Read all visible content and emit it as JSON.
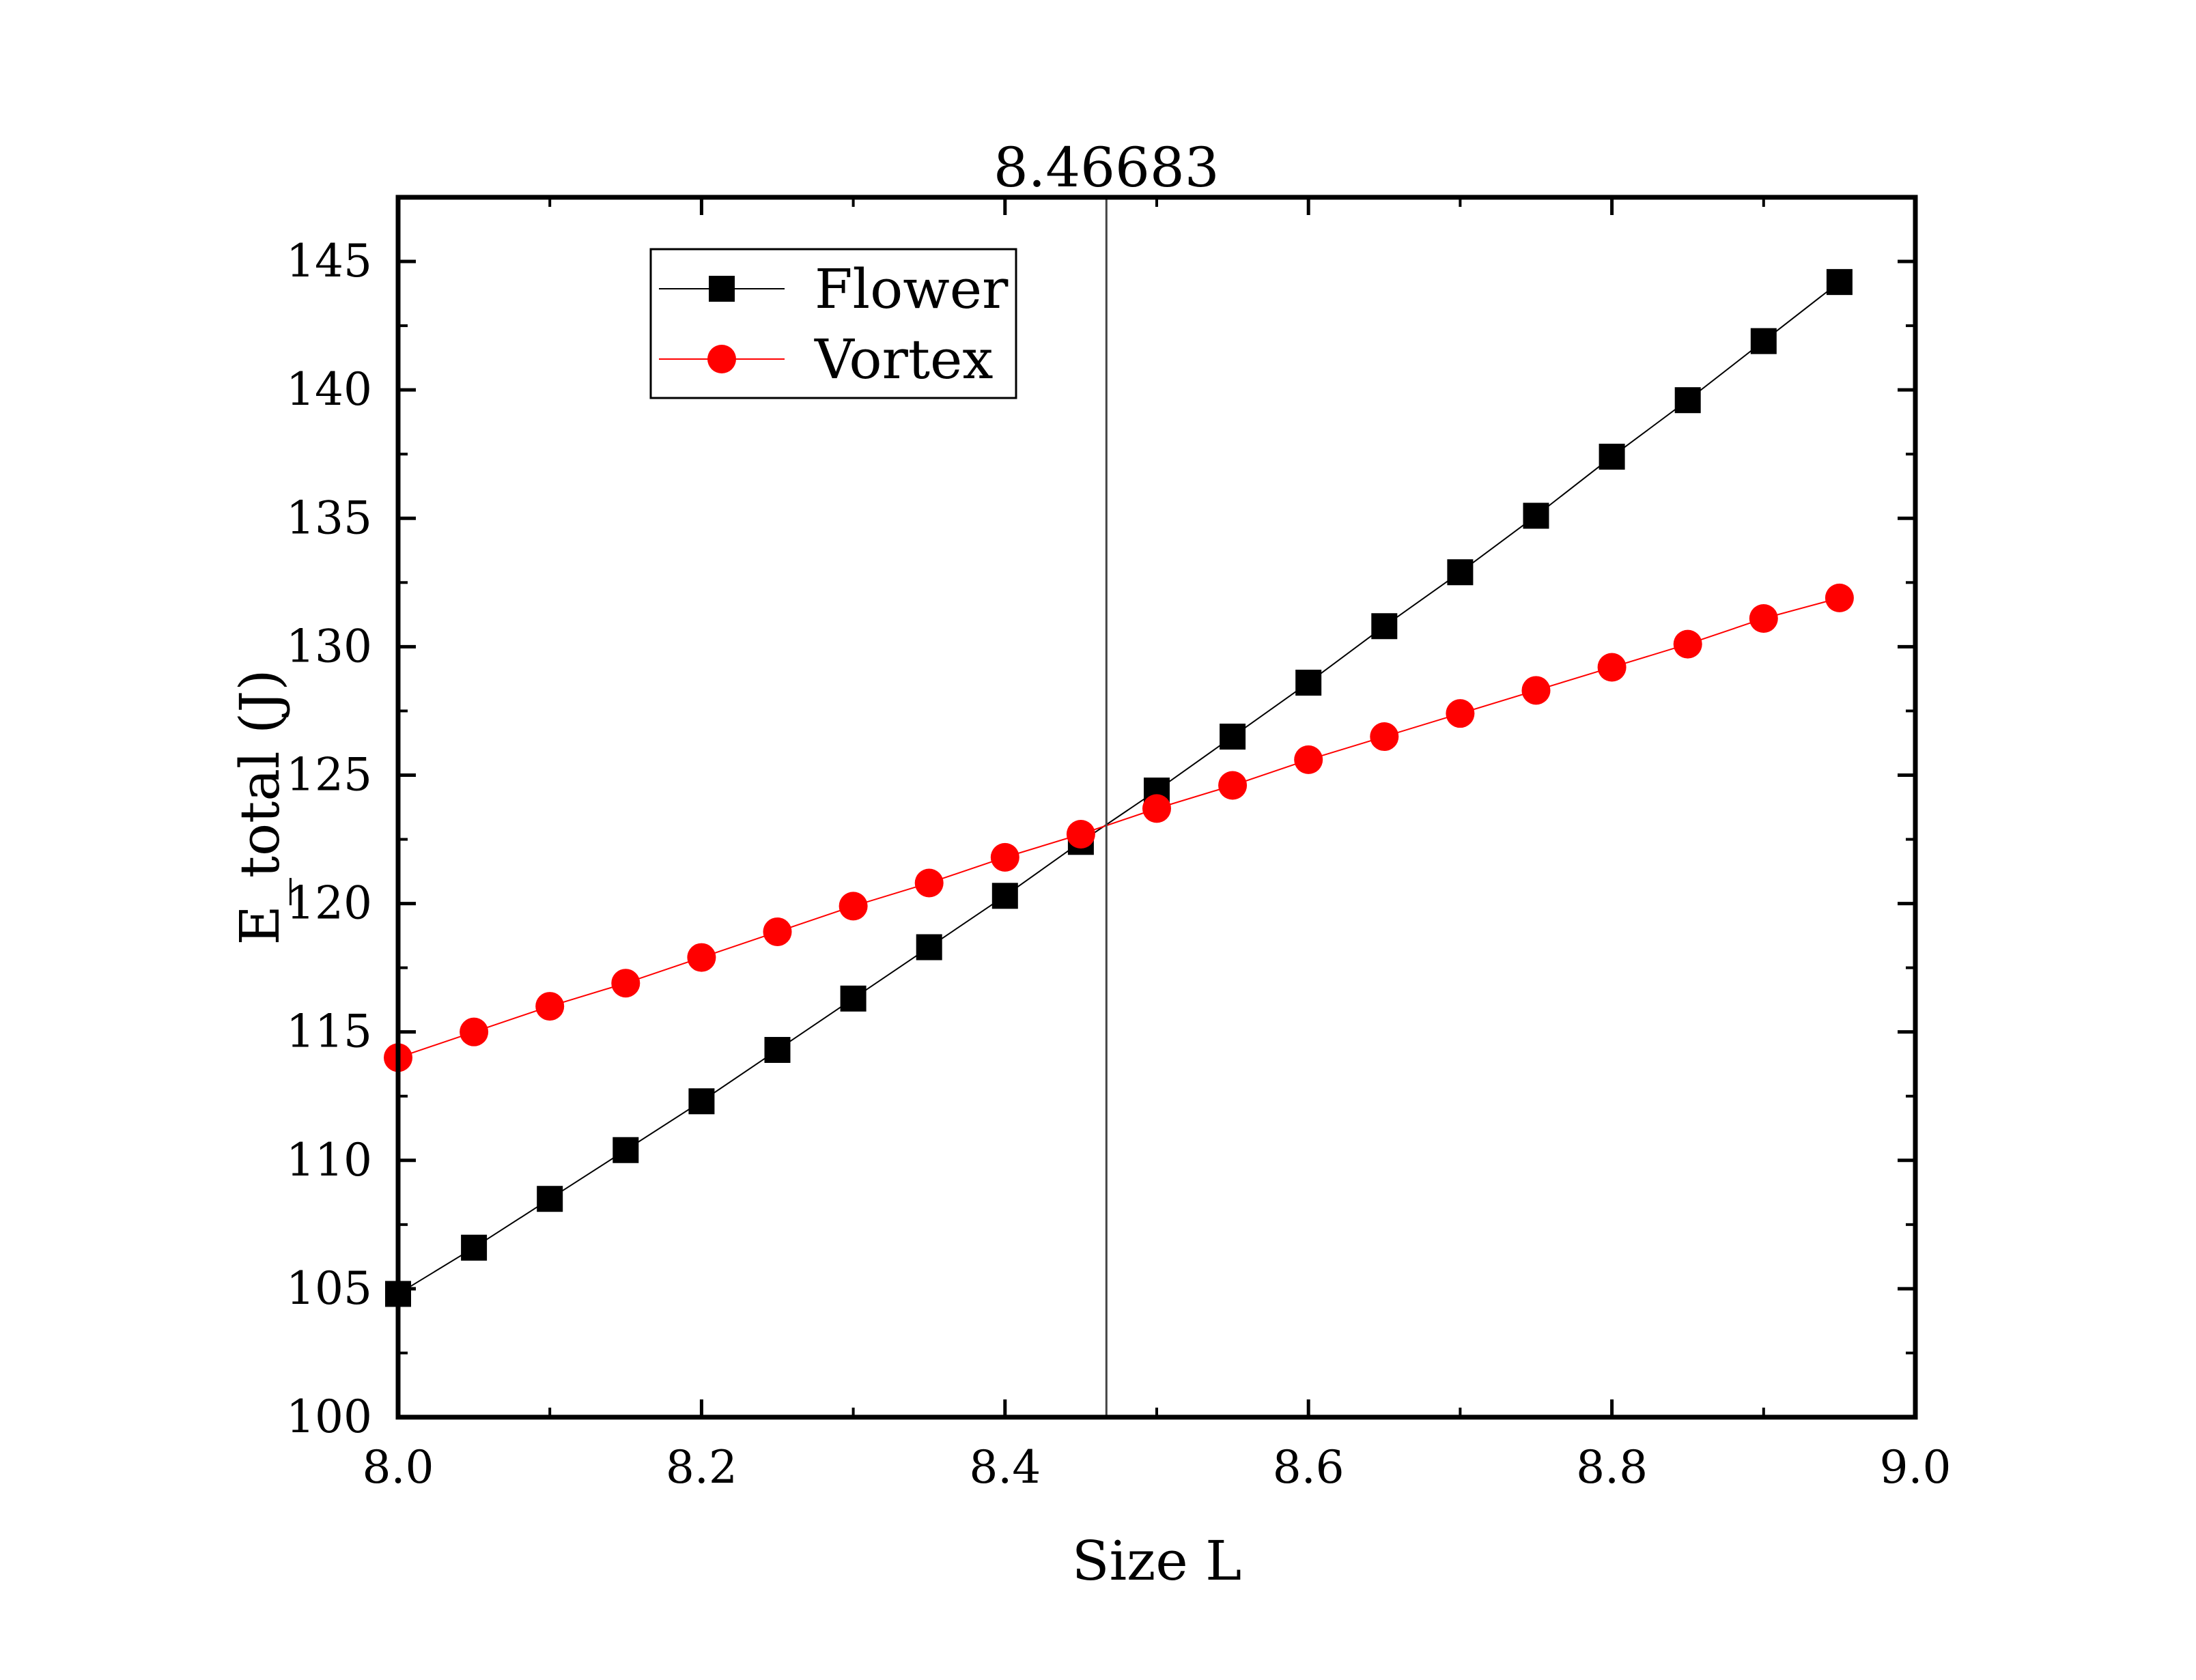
{
  "chart_data": {
    "type": "line",
    "title": "",
    "xlabel": "Size L",
    "ylabel": "E_total (J)",
    "xlim": [
      8.0,
      9.0
    ],
    "ylim": [
      100,
      147.5
    ],
    "xticks": [
      "8.0",
      "8.2",
      "8.4",
      "8.6",
      "8.8",
      "9.0"
    ],
    "yticks": [
      "100",
      "105",
      "110",
      "115",
      "120",
      "125",
      "130",
      "135",
      "140",
      "145"
    ],
    "grid": false,
    "legend_position": "top-left",
    "x": [
      8.0,
      8.05,
      8.1,
      8.15,
      8.2,
      8.25,
      8.3,
      8.35,
      8.4,
      8.45,
      8.5,
      8.55,
      8.6,
      8.65,
      8.7,
      8.75,
      8.8,
      8.85,
      8.9,
      8.95
    ],
    "series": [
      {
        "name": "Flower",
        "color": "#000000",
        "marker": "square",
        "values": [
          104.8,
          106.6,
          108.5,
          110.4,
          112.3,
          114.3,
          116.3,
          118.3,
          120.3,
          122.4,
          124.4,
          126.5,
          128.6,
          130.8,
          132.9,
          135.1,
          137.4,
          139.6,
          141.9,
          144.2
        ]
      },
      {
        "name": "Vortex",
        "color": "#ff0000",
        "marker": "circle",
        "values": [
          114.0,
          115.0,
          116.0,
          116.9,
          117.9,
          118.9,
          119.9,
          120.8,
          121.8,
          122.7,
          123.7,
          124.6,
          125.6,
          126.5,
          127.4,
          128.3,
          129.2,
          130.1,
          131.1,
          131.9
        ]
      }
    ],
    "annotations": [
      {
        "type": "vertical-line",
        "x": 8.46683,
        "label": "8.46683"
      }
    ]
  }
}
